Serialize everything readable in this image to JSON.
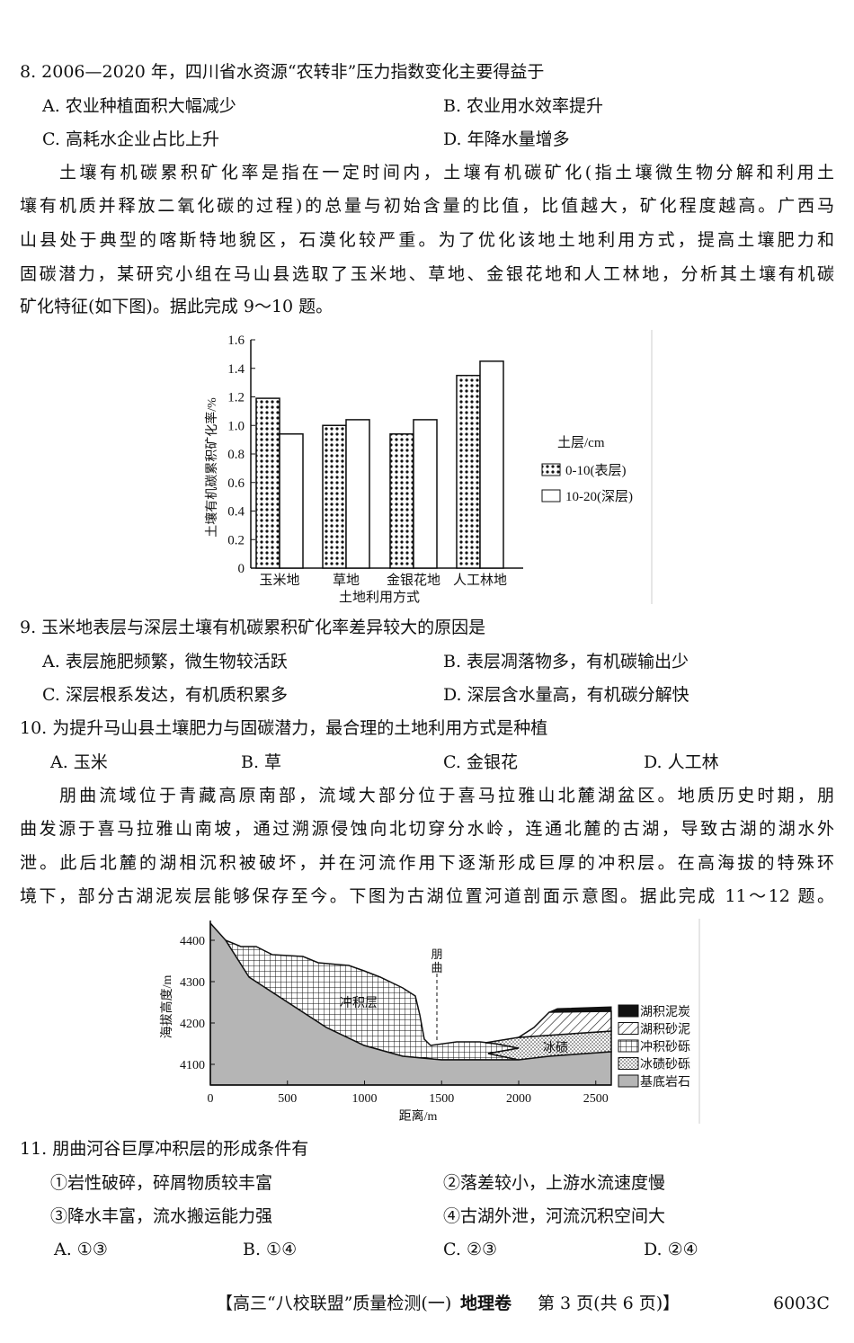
{
  "q8": {
    "stem": "8. 2006—2020 年，四川省水资源“农转非”压力指数变化主要得益于",
    "A": "A. 农业种植面积大幅减少",
    "B": "B. 农业用水效率提升",
    "C": "C. 高耗水企业占比上升",
    "D": "D. 年降水量增多"
  },
  "p1": [
    "土壤有机碳累积矿化率是指在一定时间内，土壤有机碳矿化(指土壤微生物分解和利用土",
    "壤有机质并释放二氧化碳的过程)的总量与初始含量的比值，比值越大，矿化程度越高。广西马",
    "山县处于典型的喀斯特地貌区，石漠化较严重。为了优化该地土地利用方式，提高土壤肥力和",
    "固碳潜力，某研究小组在马山县选取了玉米地、草地、金银花地和人工林地，分析其土壤有机碳",
    "矿化特征(如下图)。据此完成 9～10 题。"
  ],
  "chart_data": {
    "type": "bar",
    "categories": [
      "玉米地",
      "草地",
      "金银花地",
      "人工林地"
    ],
    "series": [
      {
        "name": "0-10(表层)",
        "values": [
          1.19,
          1.0,
          0.94,
          1.35
        ]
      },
      {
        "name": "10-20(深层)",
        "values": [
          0.94,
          1.04,
          1.04,
          1.45
        ]
      }
    ],
    "xlabel": "土地利用方式",
    "ylabel": "土壤有机碳累积矿化率/%",
    "ylim": [
      0,
      1.6
    ],
    "yticks": [
      "0",
      "0.2",
      "0.4",
      "0.6",
      "0.8",
      "1.0",
      "1.2",
      "1.4",
      "1.6"
    ],
    "legend_title": "土层/cm",
    "legend_position": "right",
    "grid": false
  },
  "q9": {
    "stem": "9. 玉米地表层与深层土壤有机碳累积矿化率差异较大的原因是",
    "A": "A. 表层施肥频繁，微生物较活跃",
    "B": "B. 表层凋落物多，有机碳输出少",
    "C": "C. 深层根系发达，有机质积累多",
    "D": "D. 深层含水量高，有机碳分解快"
  },
  "q10": {
    "stem": "10. 为提升马山县土壤肥力与固碳潜力，最合理的土地利用方式是种植",
    "A": "A. 玉米",
    "B": "B. 草",
    "C": "C. 金银花",
    "D": "D. 人工林"
  },
  "p2": [
    "朋曲流域位于青藏高原南部，流域大部分位于喜马拉雅山北麓湖盆区。地质历史时期，朋",
    "曲发源于喜马拉雅山南坡，通过溯源侵蚀向北切穿分水岭，连通北麓的古湖，导致古湖的湖水外",
    "泄。此后北麓的湖相沉积被破坏，并在河流作用下逐渐形成巨厚的冲积层。在高海拔的特殊环",
    "境下，部分古湖泥炭层能够保存至今。下图为古湖位置河道剖面示意图。据此完成 11～12 题。"
  ],
  "diagram": {
    "ylabel": "海拔高度/m",
    "xlabel": "距离/m",
    "yticks": [
      "4400",
      "4300",
      "4200",
      "4100"
    ],
    "xticks": [
      "0",
      "500",
      "1000",
      "1500",
      "2000",
      "2500"
    ],
    "river": "朋曲",
    "label_alluvium": "冲积层",
    "label_moraine": "冰碛",
    "legend": [
      "湖积泥炭",
      "湖积砂泥",
      "冲积砂砾",
      "冰碛砂砾",
      "基底岩石"
    ]
  },
  "q11": {
    "stem": "11. 朋曲河谷巨厚冲积层的形成条件有",
    "s1": "①岩性破碎，碎屑物质较丰富",
    "s2": "②落差较小，上游水流速度慢",
    "s3": "③降水丰富，流水搬运能力强",
    "s4": "④古湖外泄，河流沉积空间大",
    "A": "A. ①③",
    "B": "B. ①④",
    "C": "C. ②③",
    "D": "D. ②④"
  },
  "footer": {
    "title": "【高三“八校联盟”质量检测(一)",
    "subject": "地理卷",
    "page": "第 3 页(共 6 页)】",
    "code": "6003C"
  }
}
